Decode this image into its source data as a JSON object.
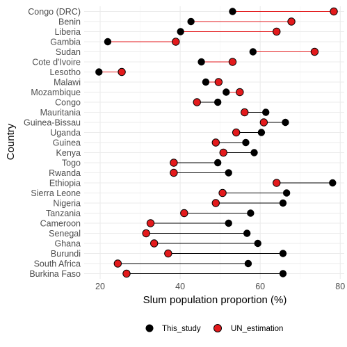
{
  "chart_data": {
    "type": "dumbbell",
    "xlabel": "Slum population proportion (%)",
    "ylabel": "Country",
    "xlim": [
      16,
      81
    ],
    "x_ticks": [
      20,
      40,
      60,
      80
    ],
    "grid": true,
    "legend_position": "bottom",
    "colors": {
      "This_study": "#000000",
      "UN_estimation": "#e31a1c",
      "segment": "#e31a1c"
    },
    "categories": [
      "Congo (DRC)",
      "Benin",
      "Liberia",
      "Gambia",
      "Sudan",
      "Cote d'Ivoire",
      "Lesotho",
      "Malawi",
      "Mozambique",
      "Congo",
      "Mauritania",
      "Guinea-Bissau",
      "Uganda",
      "Guinea",
      "Kenya",
      "Togo",
      "Rwanda",
      "Ethiopia",
      "Sierra Leone",
      "Nigeria",
      "Tanzania",
      "Cameroon",
      "Senegal",
      "Ghana",
      "Burundi",
      "South Africa",
      "Burkina Faso"
    ],
    "series": [
      {
        "name": "This_study",
        "values": [
          53.1,
          42.7,
          40.1,
          21.9,
          58.2,
          45.3,
          19.7,
          46.4,
          51.5,
          49.4,
          61.4,
          66.3,
          60.3,
          56.4,
          58.5,
          49.4,
          52.1,
          78.1,
          66.6,
          65.7,
          57.6,
          52.1,
          56.7,
          59.4,
          65.7,
          57.0,
          65.7
        ]
      },
      {
        "name": "UN_estimation",
        "values": [
          78.4,
          67.8,
          64.1,
          38.9,
          73.6,
          53.1,
          25.4,
          49.6,
          54.9,
          44.2,
          56.1,
          60.9,
          54.0,
          48.9,
          50.8,
          38.4,
          38.4,
          64.1,
          50.6,
          48.9,
          41.0,
          32.6,
          31.5,
          33.5,
          37.0,
          24.4,
          26.6
        ]
      }
    ]
  }
}
